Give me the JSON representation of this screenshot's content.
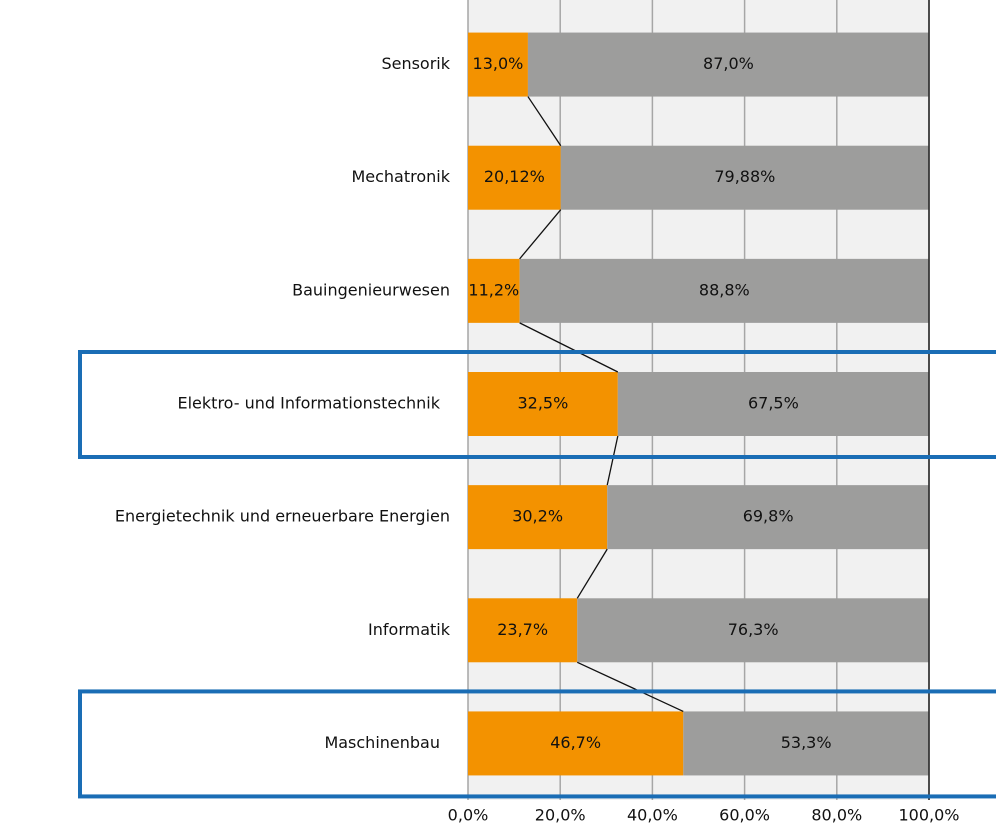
{
  "chart_data": {
    "type": "stacked_barh",
    "categories": [
      "Sensorik",
      "Mechatronik",
      "Bauingenieurwesen",
      "Elektro- und Informationstechnik",
      "Energietechnik und erneuerbare Energien",
      "Informatik",
      "Maschinenbau"
    ],
    "series": [
      {
        "color": "#f39200",
        "values": [
          13.0,
          20.12,
          11.2,
          32.5,
          30.2,
          23.7,
          46.7
        ],
        "value_labels": [
          "13,0%",
          "20,12%",
          "11,2%",
          "32,5%",
          "30,2%",
          "23,7%",
          "46,7%"
        ]
      },
      {
        "color": "#9d9d9c",
        "values": [
          87.0,
          79.88,
          88.8,
          67.5,
          69.8,
          76.3,
          53.3
        ],
        "value_labels": [
          "87,0%",
          "79,88%",
          "88,8%",
          "67,5%",
          "69,8%",
          "76,3%",
          "53,3%"
        ]
      }
    ],
    "xlim": [
      0,
      100
    ],
    "xticks": [
      {
        "value": 0,
        "label": "0,0%"
      },
      {
        "value": 20,
        "label": "20,0%"
      },
      {
        "value": 40,
        "label": "40,0%"
      },
      {
        "value": 60,
        "label": "60,0%"
      },
      {
        "value": 80,
        "label": "80,0%"
      },
      {
        "value": 100,
        "label": "100,0%"
      }
    ],
    "grid": true,
    "highlighted_categories": [
      3,
      6
    ],
    "highlight_color": "#1a6db5"
  }
}
